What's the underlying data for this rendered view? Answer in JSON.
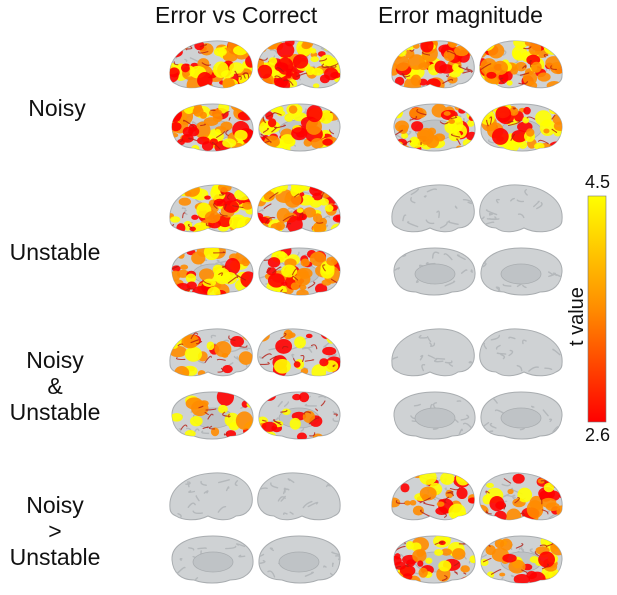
{
  "columns": [
    "Error vs Correct",
    "Error magnitude"
  ],
  "rows": [
    {
      "label_lines": [
        "Noisy"
      ]
    },
    {
      "label_lines": [
        "Unstable"
      ]
    },
    {
      "label_lines": [
        "Noisy",
        "&",
        "Unstable"
      ]
    },
    {
      "label_lines": [
        "Noisy",
        ">",
        "Unstable"
      ]
    }
  ],
  "colorbar": {
    "max_label": "4.5",
    "min_label": "2.6",
    "title": "t value",
    "colors": [
      "#ffff00",
      "#ff8c00",
      "#ff0000"
    ]
  },
  "activation": [
    {
      "lateral": 0.85,
      "medial": 0.75
    },
    {
      "lateral": 0.8,
      "medial": 0.7
    },
    {
      "lateral": 0.75,
      "medial": 0.7
    },
    {
      "lateral": 0.0,
      "medial": 0.0
    },
    {
      "lateral": 0.3,
      "medial": 0.25
    },
    {
      "lateral": 0.0,
      "medial": 0.0
    },
    {
      "lateral": 0.0,
      "medial": 0.0
    },
    {
      "lateral": 0.45,
      "medial": 0.5
    }
  ]
}
